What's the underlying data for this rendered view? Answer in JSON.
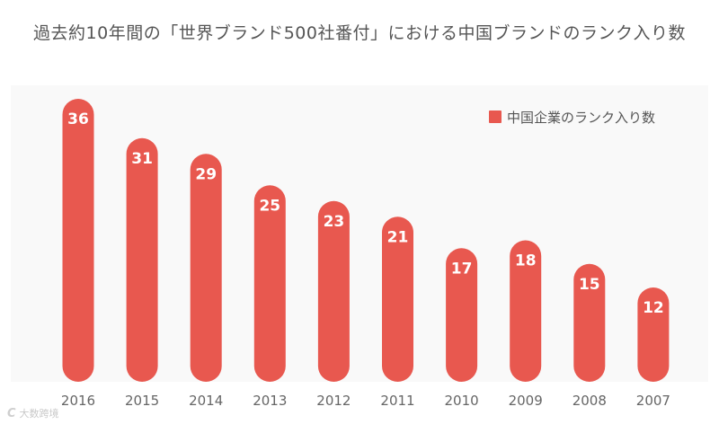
{
  "chart_data": {
    "type": "bar",
    "title": "過去約10年間の「世界ブランド500社番付」における中国ブランドのランク入り数",
    "categories": [
      "2016",
      "2015",
      "2014",
      "2013",
      "2012",
      "2011",
      "2010",
      "2009",
      "2008",
      "2007"
    ],
    "series": [
      {
        "name": "中国企業のランク入り数",
        "values": [
          36,
          31,
          29,
          25,
          23,
          21,
          17,
          18,
          15,
          12
        ]
      }
    ],
    "xlabel": "",
    "ylabel": "",
    "ylim": [
      0,
      40
    ],
    "grid": false,
    "legend": "top-right",
    "data_labels": true
  },
  "colors": {
    "bar": "#e8584f",
    "label_text": "#ffffff",
    "axis_text": "#666666",
    "title_text": "#555555",
    "background": "#ffffff",
    "plot_background": "#f9f9f9"
  },
  "watermark": {
    "logo": "C",
    "text": "大数跨境"
  }
}
